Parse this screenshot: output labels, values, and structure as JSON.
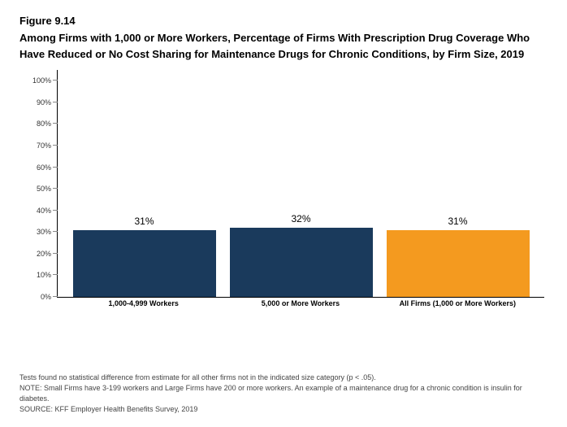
{
  "figure_number": "Figure 9.14",
  "title": "Among Firms with 1,000 or More Workers, Percentage of Firms With Prescription Drug Coverage Who Have Reduced or No Cost Sharing for Maintenance Drugs for Chronic Conditions, by Firm Size, 2019",
  "chart": {
    "type": "bar",
    "ylim": [
      0,
      105
    ],
    "ytick_step": 10,
    "yticks": [
      0,
      10,
      20,
      30,
      40,
      50,
      60,
      70,
      80,
      90,
      100
    ],
    "ylabels": [
      "0%",
      "10%",
      "20%",
      "30%",
      "40%",
      "50%",
      "60%",
      "70%",
      "80%",
      "90%",
      "100%"
    ],
    "categories": [
      "1,000-4,999 Workers",
      "5,000 or More Workers",
      "All Firms (1,000 or More Workers)"
    ],
    "values": [
      31,
      32,
      31
    ],
    "value_labels": [
      "31%",
      "32%",
      "31%"
    ],
    "bar_colors": [
      "#1a3a5c",
      "#1a3a5c",
      "#f49a1f"
    ],
    "background_color": "#ffffff",
    "axis_color": "#000000",
    "value_label_fontsize": 12,
    "xlabel_fontsize": 9,
    "ylabel_fontsize": 9
  },
  "footnotes": {
    "test": "Tests found no statistical difference from estimate for all other firms not in the indicated size category (p < .05).",
    "note": "NOTE: Small Firms have 3-199 workers and Large Firms have 200 or more workers.  An example of a maintenance drug for a chronic condition is insulin for diabetes.",
    "source": "SOURCE: KFF Employer Health Benefits Survey, 2019"
  }
}
